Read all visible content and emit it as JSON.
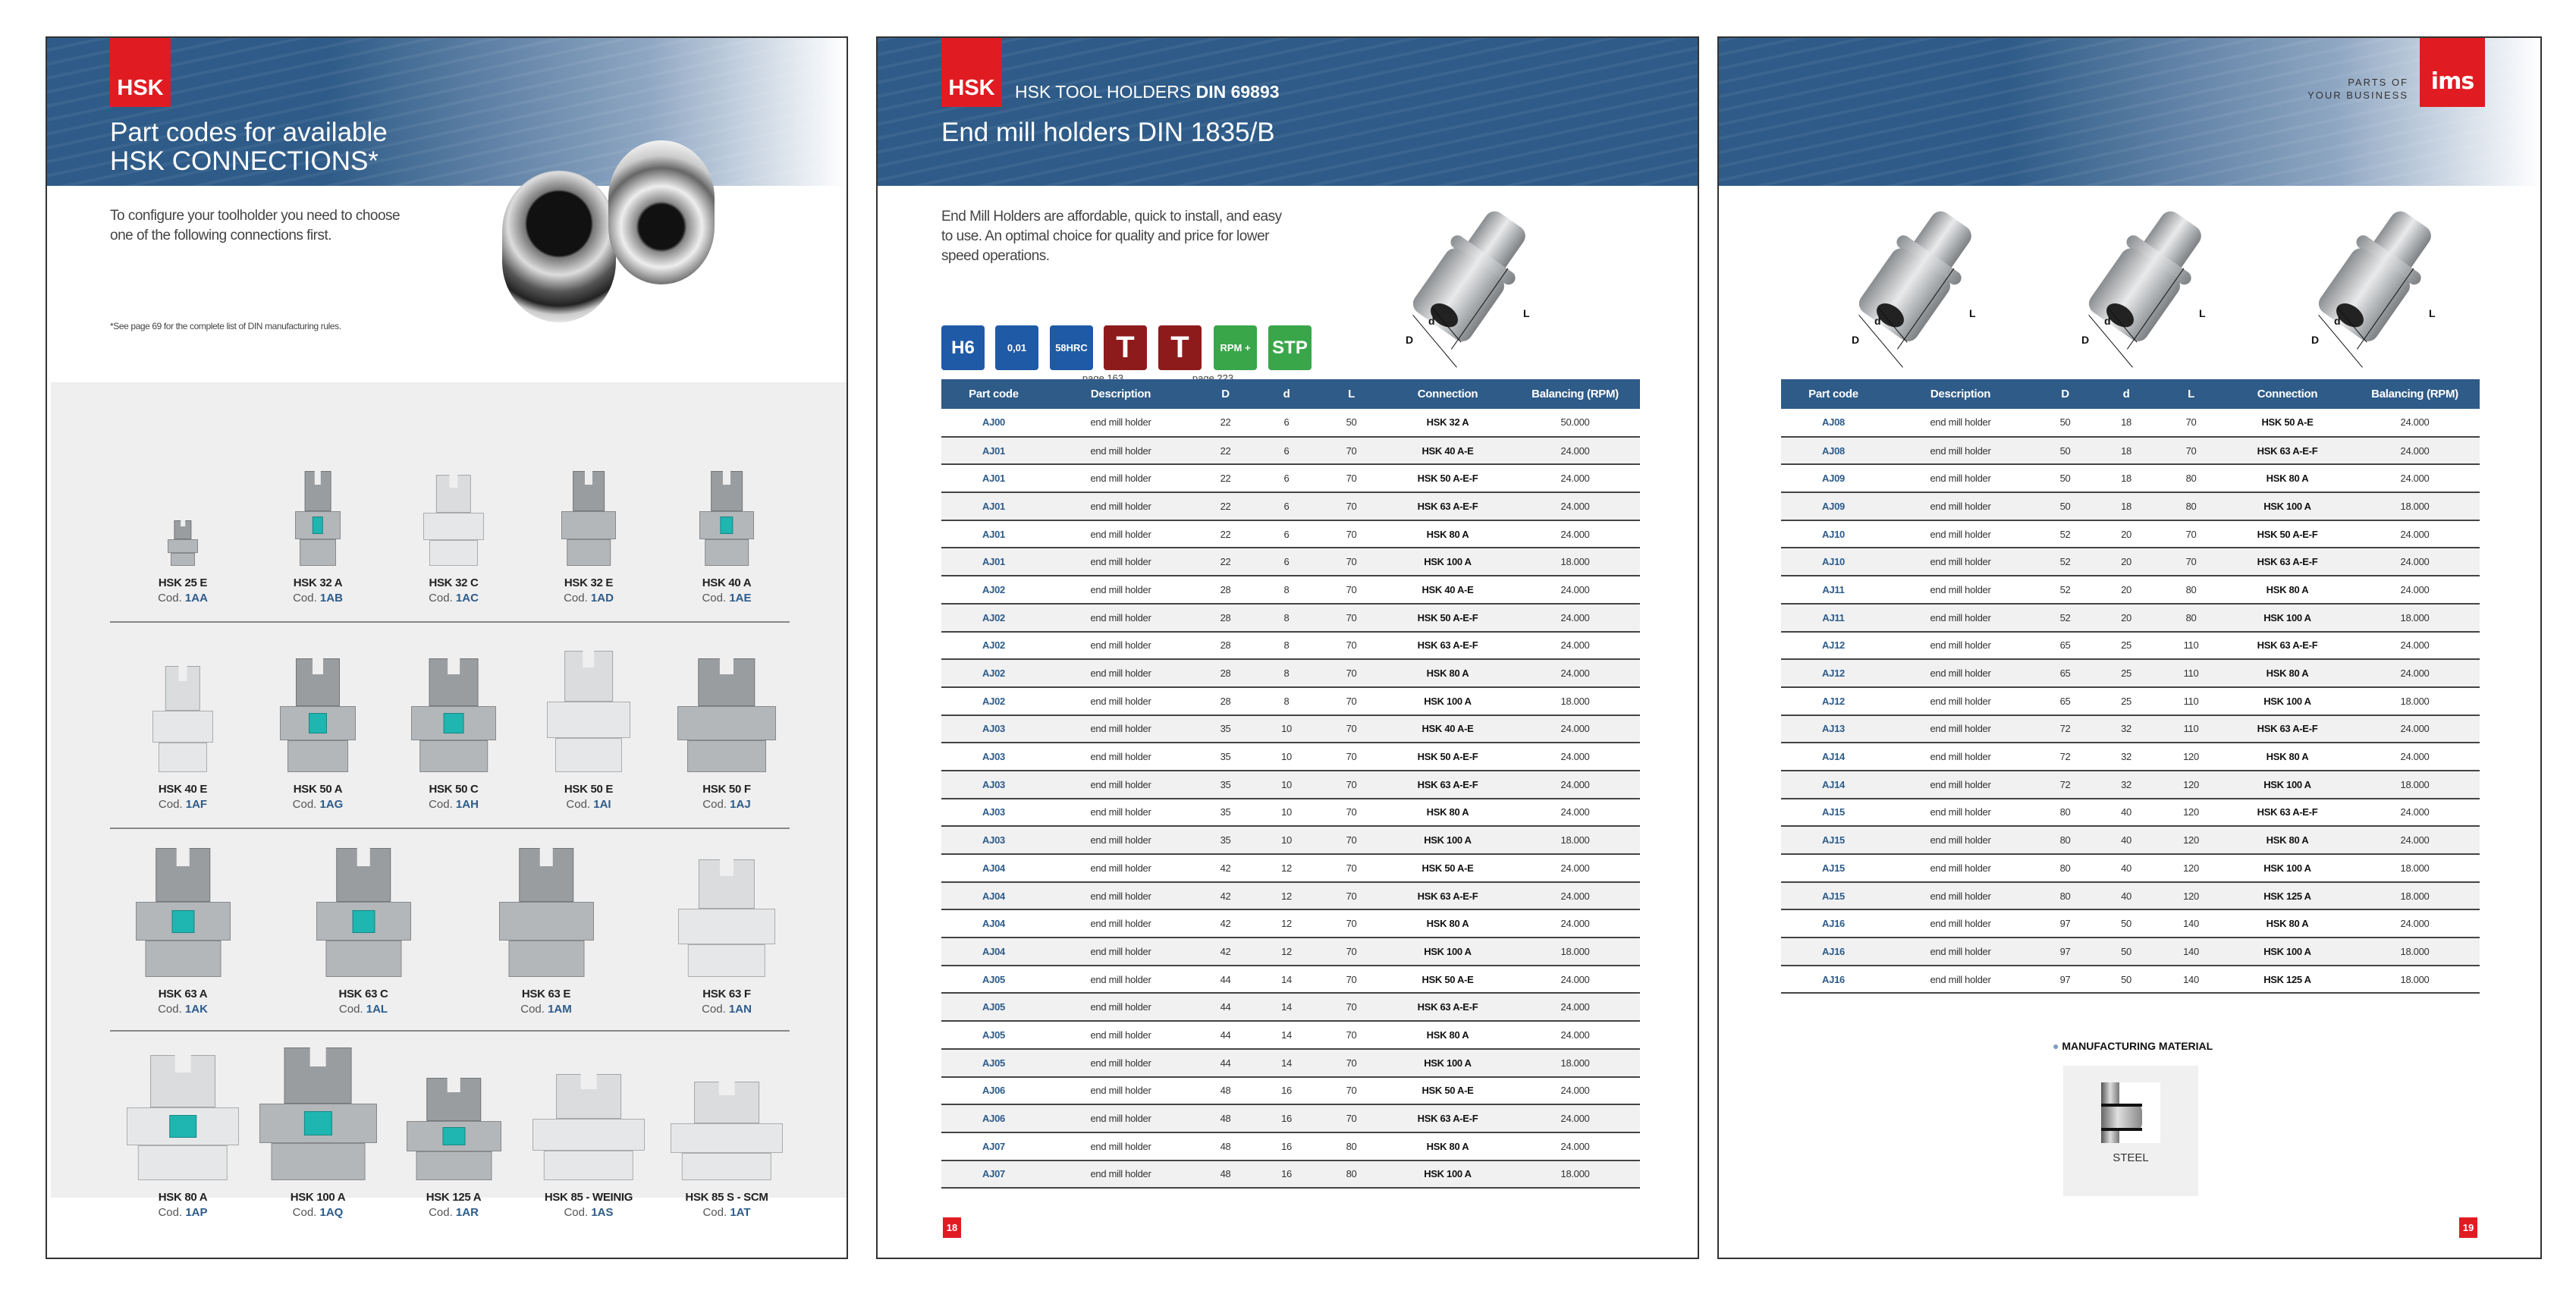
{
  "left_page": {
    "badge": "HSK",
    "title_line1": "Part codes for available",
    "title_line2": "HSK CONNECTIONS*",
    "intro_line1": "To configure your toolholder you need to choose",
    "intro_line2": "one of the following connections first.",
    "footnote": "*See page 69 for the complete list of DIN manufacturing rules.",
    "cod_prefix": "Cod.",
    "connections": [
      {
        "name": "HSK 25 E",
        "code": "1AA",
        "tone": "dark",
        "teal": false
      },
      {
        "name": "HSK 32 A",
        "code": "1AB",
        "tone": "dark",
        "teal": true
      },
      {
        "name": "HSK 32 C",
        "code": "1AC",
        "tone": "light",
        "teal": false
      },
      {
        "name": "HSK 32 E",
        "code": "1AD",
        "tone": "dark",
        "teal": false
      },
      {
        "name": "HSK 40 A",
        "code": "1AE",
        "tone": "dark",
        "teal": true
      },
      {
        "name": "HSK 40 E",
        "code": "1AF",
        "tone": "light",
        "teal": false
      },
      {
        "name": "HSK 50 A",
        "code": "1AG",
        "tone": "dark",
        "teal": true
      },
      {
        "name": "HSK 50 C",
        "code": "1AH",
        "tone": "dark",
        "teal": true
      },
      {
        "name": "HSK 50 E",
        "code": "1AI",
        "tone": "light",
        "teal": false
      },
      {
        "name": "HSK 50 F",
        "code": "1AJ",
        "tone": "dark",
        "teal": false
      },
      {
        "name": "HSK 63 A",
        "code": "1AK",
        "tone": "dark",
        "teal": true
      },
      {
        "name": "HSK 63 C",
        "code": "1AL",
        "tone": "dark",
        "teal": true
      },
      {
        "name": "HSK 63 E",
        "code": "1AM",
        "tone": "dark",
        "teal": false
      },
      {
        "name": "HSK 63 F",
        "code": "1AN",
        "tone": "light",
        "teal": false
      },
      {
        "name": "HSK 80 A",
        "code": "1AP",
        "tone": "light",
        "teal": true
      },
      {
        "name": "HSK 100 A",
        "code": "1AQ",
        "tone": "dark",
        "teal": true
      },
      {
        "name": "HSK 125 A",
        "code": "1AR",
        "tone": "dark",
        "teal": true
      },
      {
        "name": "HSK 85 - WEINIG",
        "code": "1AS",
        "tone": "light",
        "teal": false
      },
      {
        "name": "HSK 85 S - SCM",
        "code": "1AT",
        "tone": "light",
        "teal": false
      }
    ]
  },
  "middle_page": {
    "badge": "HSK",
    "subtitle": "HSK TOOL HOLDERS",
    "subtitle_bold": "DIN 69893",
    "title": "End mill holders DIN 1835/B",
    "description_lines": [
      "End Mill Holders are affordable, quick to install, and easy",
      "to use. An optimal choice for quality and price for lower",
      "speed operations."
    ],
    "feature_icons": [
      {
        "icon": "h6-tolerance-icon",
        "text": "H6",
        "color": "#1f5aa6"
      },
      {
        "icon": "runout-icon",
        "text": "0,01",
        "color": "#1f5aa6"
      },
      {
        "icon": "hardness-icon",
        "text": "58HRC",
        "color": "#1f5aa6"
      },
      {
        "icon": "t-wrench-icon",
        "text": "T",
        "color": "#8e1b1b"
      },
      {
        "icon": "t-key-icon",
        "text": "T",
        "color": "#8e1b1b"
      },
      {
        "icon": "rpm-balancing-icon",
        "text": "RPM +",
        "color": "#3aa64a"
      },
      {
        "icon": "stp-icon",
        "text": "STP",
        "color": "#3aa64a"
      }
    ],
    "icon_captions": {
      "t_wrench": "page 163",
      "rpm": "page 223"
    },
    "diagram_labels": {
      "D": "D",
      "d": "d",
      "L": "L"
    },
    "page_number": "18"
  },
  "table_headers": [
    "Part code",
    "Description",
    "D",
    "d",
    "L",
    "Connection",
    "Balancing (RPM)"
  ],
  "middle_table": [
    [
      "AJ00",
      "end mill holder",
      "22",
      "6",
      "50",
      "HSK 32 A",
      "50.000"
    ],
    [
      "AJ01",
      "end mill holder",
      "22",
      "6",
      "70",
      "HSK 40 A-E",
      "24.000"
    ],
    [
      "AJ01",
      "end mill holder",
      "22",
      "6",
      "70",
      "HSK 50 A-E-F",
      "24.000"
    ],
    [
      "AJ01",
      "end mill holder",
      "22",
      "6",
      "70",
      "HSK 63 A-E-F",
      "24.000"
    ],
    [
      "AJ01",
      "end mill holder",
      "22",
      "6",
      "70",
      "HSK 80 A",
      "24.000"
    ],
    [
      "AJ01",
      "end mill holder",
      "22",
      "6",
      "70",
      "HSK 100 A",
      "18.000"
    ],
    [
      "AJ02",
      "end mill holder",
      "28",
      "8",
      "70",
      "HSK 40 A-E",
      "24.000"
    ],
    [
      "AJ02",
      "end mill holder",
      "28",
      "8",
      "70",
      "HSK 50 A-E-F",
      "24.000"
    ],
    [
      "AJ02",
      "end mill holder",
      "28",
      "8",
      "70",
      "HSK 63 A-E-F",
      "24.000"
    ],
    [
      "AJ02",
      "end mill holder",
      "28",
      "8",
      "70",
      "HSK 80 A",
      "24.000"
    ],
    [
      "AJ02",
      "end mill holder",
      "28",
      "8",
      "70",
      "HSK 100 A",
      "18.000"
    ],
    [
      "AJ03",
      "end mill holder",
      "35",
      "10",
      "70",
      "HSK 40 A-E",
      "24.000"
    ],
    [
      "AJ03",
      "end mill holder",
      "35",
      "10",
      "70",
      "HSK 50 A-E-F",
      "24.000"
    ],
    [
      "AJ03",
      "end mill holder",
      "35",
      "10",
      "70",
      "HSK 63 A-E-F",
      "24.000"
    ],
    [
      "AJ03",
      "end mill holder",
      "35",
      "10",
      "70",
      "HSK 80 A",
      "24.000"
    ],
    [
      "AJ03",
      "end mill holder",
      "35",
      "10",
      "70",
      "HSK 100 A",
      "18.000"
    ],
    [
      "AJ04",
      "end mill holder",
      "42",
      "12",
      "70",
      "HSK 50 A-E",
      "24.000"
    ],
    [
      "AJ04",
      "end mill holder",
      "42",
      "12",
      "70",
      "HSK 63 A-E-F",
      "24.000"
    ],
    [
      "AJ04",
      "end mill holder",
      "42",
      "12",
      "70",
      "HSK 80 A",
      "24.000"
    ],
    [
      "AJ04",
      "end mill holder",
      "42",
      "12",
      "70",
      "HSK 100 A",
      "18.000"
    ],
    [
      "AJ05",
      "end mill holder",
      "44",
      "14",
      "70",
      "HSK 50 A-E",
      "24.000"
    ],
    [
      "AJ05",
      "end mill holder",
      "44",
      "14",
      "70",
      "HSK 63 A-E-F",
      "24.000"
    ],
    [
      "AJ05",
      "end mill holder",
      "44",
      "14",
      "70",
      "HSK 80 A",
      "24.000"
    ],
    [
      "AJ05",
      "end mill holder",
      "44",
      "14",
      "70",
      "HSK 100 A",
      "18.000"
    ],
    [
      "AJ06",
      "end mill holder",
      "48",
      "16",
      "70",
      "HSK 50 A-E",
      "24.000"
    ],
    [
      "AJ06",
      "end mill holder",
      "48",
      "16",
      "70",
      "HSK 63 A-E-F",
      "24.000"
    ],
    [
      "AJ07",
      "end mill holder",
      "48",
      "16",
      "80",
      "HSK 80 A",
      "24.000"
    ],
    [
      "AJ07",
      "end mill holder",
      "48",
      "16",
      "80",
      "HSK 100 A",
      "18.000"
    ]
  ],
  "right_table": [
    [
      "AJ08",
      "end mill holder",
      "50",
      "18",
      "70",
      "HSK 50 A-E",
      "24.000"
    ],
    [
      "AJ08",
      "end mill holder",
      "50",
      "18",
      "70",
      "HSK 63 A-E-F",
      "24.000"
    ],
    [
      "AJ09",
      "end mill holder",
      "50",
      "18",
      "80",
      "HSK 80 A",
      "24.000"
    ],
    [
      "AJ09",
      "end mill holder",
      "50",
      "18",
      "80",
      "HSK 100 A",
      "18.000"
    ],
    [
      "AJ10",
      "end mill holder",
      "52",
      "20",
      "70",
      "HSK 50 A-E-F",
      "24.000"
    ],
    [
      "AJ10",
      "end mill holder",
      "52",
      "20",
      "70",
      "HSK 63 A-E-F",
      "24.000"
    ],
    [
      "AJ11",
      "end mill holder",
      "52",
      "20",
      "80",
      "HSK 80 A",
      "24.000"
    ],
    [
      "AJ11",
      "end mill holder",
      "52",
      "20",
      "80",
      "HSK 100 A",
      "18.000"
    ],
    [
      "AJ12",
      "end mill holder",
      "65",
      "25",
      "110",
      "HSK 63 A-E-F",
      "24.000"
    ],
    [
      "AJ12",
      "end mill holder",
      "65",
      "25",
      "110",
      "HSK 80 A",
      "24.000"
    ],
    [
      "AJ12",
      "end mill holder",
      "65",
      "25",
      "110",
      "HSK 100 A",
      "18.000"
    ],
    [
      "AJ13",
      "end mill holder",
      "72",
      "32",
      "110",
      "HSK 63 A-E-F",
      "24.000"
    ],
    [
      "AJ14",
      "end mill holder",
      "72",
      "32",
      "120",
      "HSK 80 A",
      "24.000"
    ],
    [
      "AJ14",
      "end mill holder",
      "72",
      "32",
      "120",
      "HSK 100 A",
      "18.000"
    ],
    [
      "AJ15",
      "end mill holder",
      "80",
      "40",
      "120",
      "HSK 63 A-E-F",
      "24.000"
    ],
    [
      "AJ15",
      "end mill holder",
      "80",
      "40",
      "120",
      "HSK 80 A",
      "24.000"
    ],
    [
      "AJ15",
      "end mill holder",
      "80",
      "40",
      "120",
      "HSK 100 A",
      "18.000"
    ],
    [
      "AJ15",
      "end mill holder",
      "80",
      "40",
      "120",
      "HSK 125 A",
      "18.000"
    ],
    [
      "AJ16",
      "end mill holder",
      "97",
      "50",
      "140",
      "HSK 80 A",
      "24.000"
    ],
    [
      "AJ16",
      "end mill holder",
      "97",
      "50",
      "140",
      "HSK 100 A",
      "18.000"
    ],
    [
      "AJ16",
      "end mill holder",
      "97",
      "50",
      "140",
      "HSK 125 A",
      "18.000"
    ]
  ],
  "right_page": {
    "tagline_line1": "PARTS OF",
    "tagline_line2": "YOUR BUSINESS",
    "logo_text": "ims",
    "material_heading": "MANUFACTURING MATERIAL",
    "material": "STEEL",
    "page_number": "19"
  },
  "colors": {
    "brand_blue": "#2e5b88",
    "brand_red": "#e11b22",
    "accent_teal": "#1fb5b0"
  }
}
